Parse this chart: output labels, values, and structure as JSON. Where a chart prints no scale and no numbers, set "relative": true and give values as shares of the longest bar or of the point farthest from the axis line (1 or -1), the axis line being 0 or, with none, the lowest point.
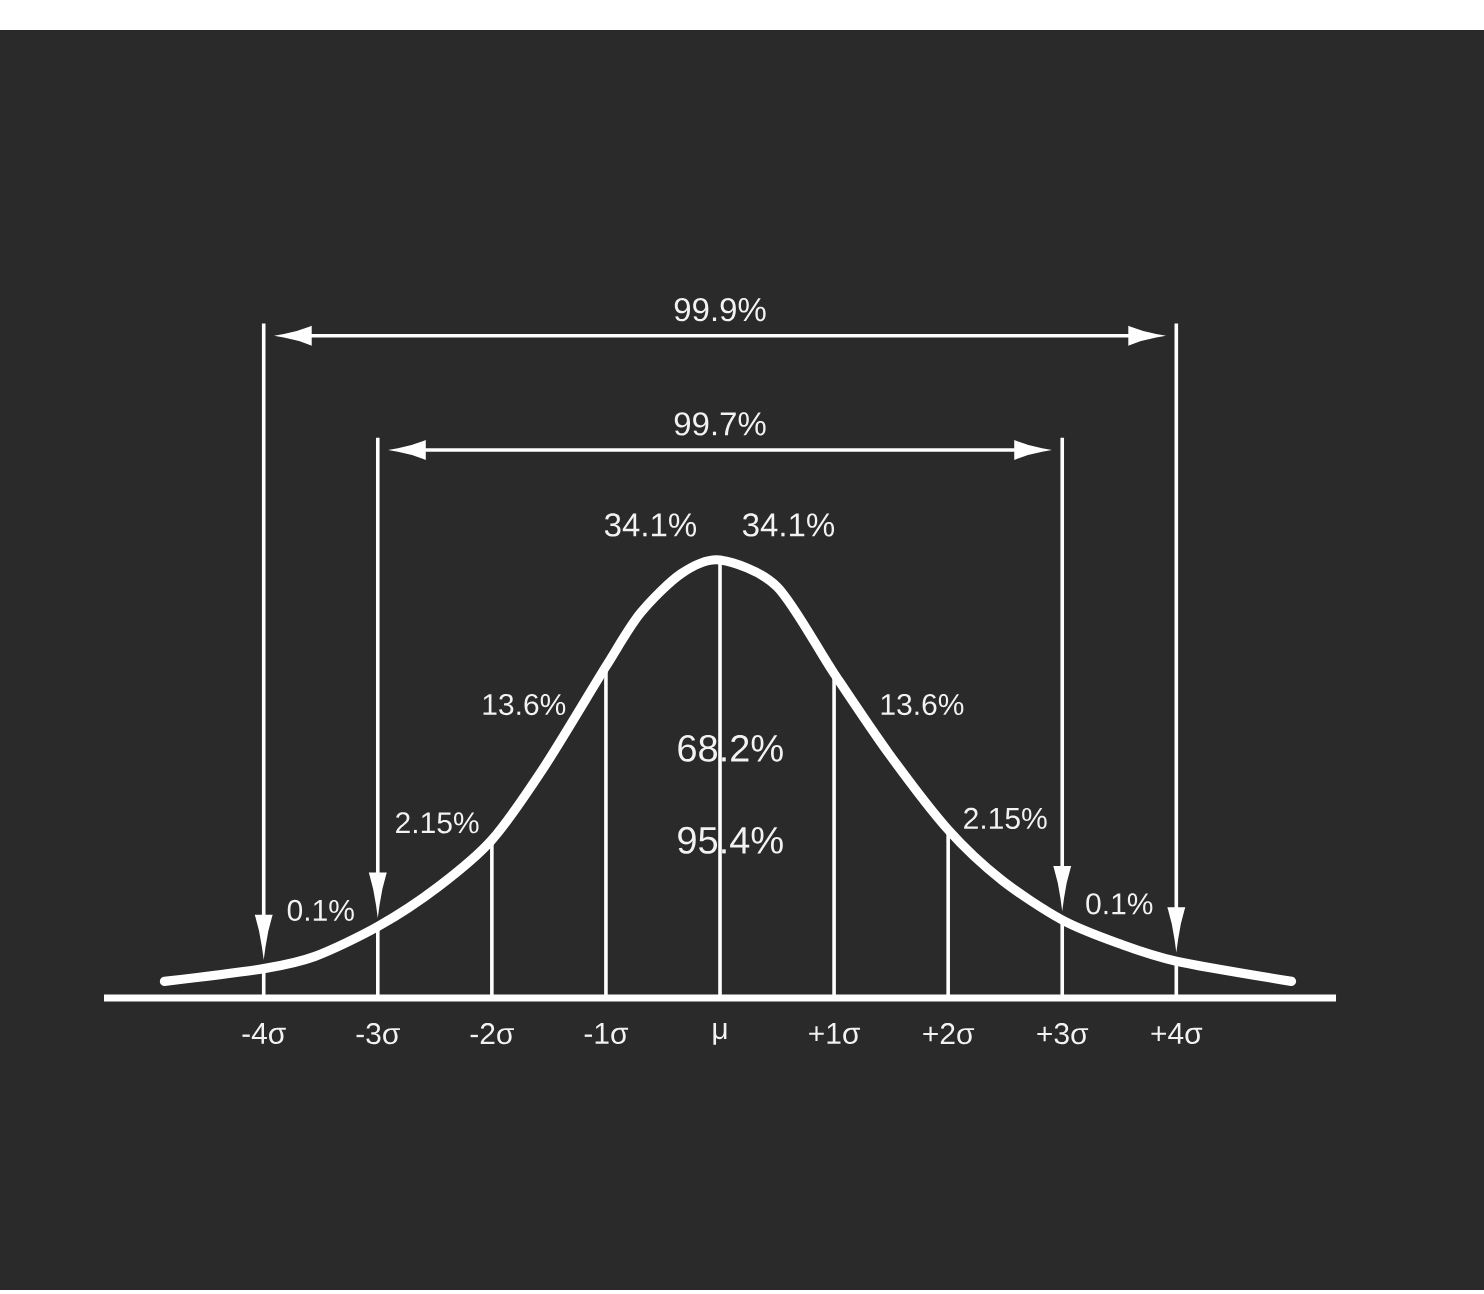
{
  "chart_data": {
    "type": "line",
    "relative": true,
    "x": [
      -4.87,
      -4,
      -3.55,
      -3,
      -2.47,
      -2,
      -1.54,
      -1,
      -0.7,
      -0.34,
      0,
      0.5,
      1,
      1.48,
      2,
      2.47,
      3,
      3.49,
      4,
      5.01
    ],
    "values": [
      0.038,
      0.067,
      0.095,
      0.163,
      0.254,
      0.361,
      0.528,
      0.757,
      0.878,
      0.969,
      1,
      0.939,
      0.741,
      0.558,
      0.384,
      0.269,
      0.178,
      0.125,
      0.084,
      0.038
    ],
    "color": "#ffffff",
    "xlim": [
      -5.4,
      5.4
    ],
    "xticks": [
      {
        "value": -4,
        "label": "-4σ"
      },
      {
        "value": -3,
        "label": "-3σ"
      },
      {
        "value": -2,
        "label": "-2σ"
      },
      {
        "value": -1,
        "label": "-1σ"
      },
      {
        "value": 0,
        "label": "μ"
      },
      {
        "value": 1,
        "label": "+1σ"
      },
      {
        "value": 2,
        "label": "+2σ"
      },
      {
        "value": 3,
        "label": "+3σ"
      },
      {
        "value": 4,
        "label": "+4σ"
      }
    ],
    "tick_labels": "x",
    "grid": "x",
    "annotations": [
      "99.9%",
      "99.7%",
      "0.1%",
      "2.15%",
      "13.6%",
      "34.1%",
      "34.1%",
      "13.6%",
      "2.15%",
      "0.1%",
      "68.2%",
      "95.4%"
    ]
  }
}
